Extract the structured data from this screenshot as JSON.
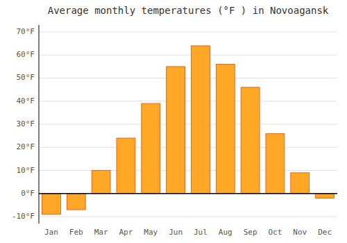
{
  "chart_data": {
    "type": "bar",
    "title": "Average monthly temperatures (°F ) in Novoagansk",
    "categories": [
      "Jan",
      "Feb",
      "Mar",
      "Apr",
      "May",
      "Jun",
      "Jul",
      "Aug",
      "Sep",
      "Oct",
      "Nov",
      "Dec"
    ],
    "values": [
      -9,
      -7,
      10,
      24,
      39,
      55,
      64,
      56,
      46,
      26,
      9,
      -2
    ],
    "color": "#FFA726",
    "ylim": [
      -13,
      73
    ],
    "yticks": [
      {
        "value": -10,
        "label": "-10°F"
      },
      {
        "value": 0,
        "label": "0°F"
      },
      {
        "value": 10,
        "label": "10°F"
      },
      {
        "value": 20,
        "label": "20°F"
      },
      {
        "value": 30,
        "label": "30°F"
      },
      {
        "value": 40,
        "label": "40°F"
      },
      {
        "value": 50,
        "label": "50°F"
      },
      {
        "value": 60,
        "label": "60°F"
      },
      {
        "value": 70,
        "label": "70°F"
      }
    ],
    "grid": true
  }
}
